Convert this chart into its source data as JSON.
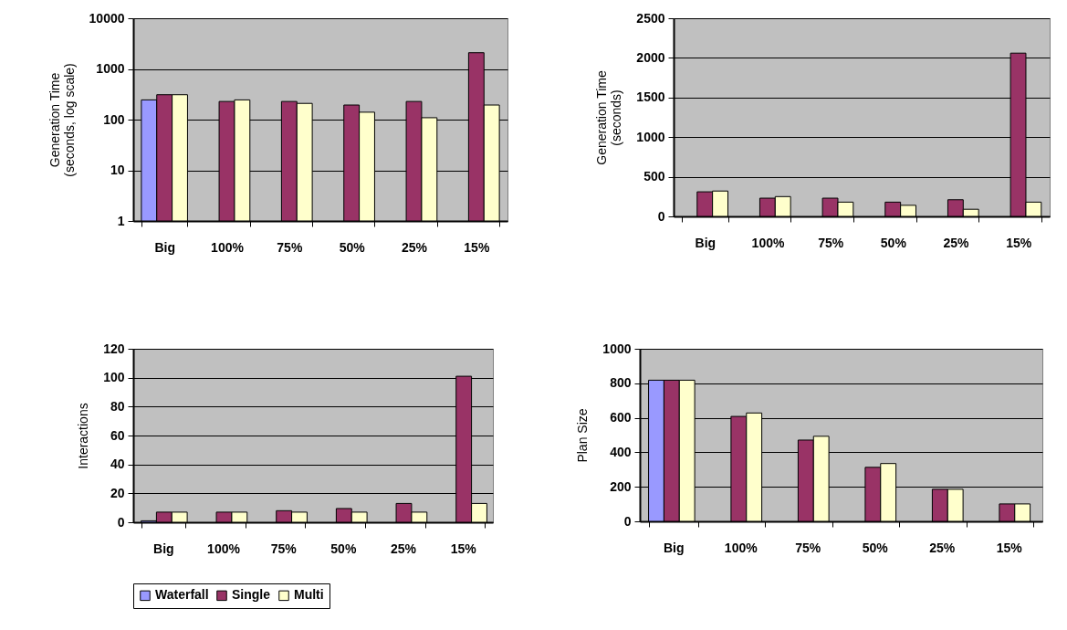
{
  "chart_data": [
    {
      "type": "bar",
      "ylabel": "Generation Time (seconds, log scale)",
      "log": true,
      "categories": [
        "Big",
        "100%",
        "75%",
        "50%",
        "25%",
        "15%"
      ],
      "ylim": [
        1,
        10000
      ],
      "yticks": [
        1,
        10,
        100,
        1000,
        10000
      ],
      "grid": "y",
      "legend": "bottom",
      "series": [
        {
          "name": "Waterfall",
          "color": "#9999ff",
          "values": [
            245,
            null,
            null,
            null,
            null,
            null
          ]
        },
        {
          "name": "Single",
          "color": "#993366",
          "values": [
            310,
            228,
            228,
            194,
            228,
            2090
          ]
        },
        {
          "name": "Multi",
          "color": "#ffffcc",
          "values": [
            310,
            245,
            209,
            140,
            109,
            194
          ]
        }
      ]
    },
    {
      "type": "bar",
      "ylabel": "Generation Time (seconds)",
      "categories": [
        "Big",
        "100%",
        "75%",
        "50%",
        "25%",
        "15%"
      ],
      "ylim": [
        0,
        2500
      ],
      "yticks": [
        0,
        500,
        1000,
        1500,
        2000,
        2500
      ],
      "grid": "y",
      "legend": "bottom",
      "series": [
        {
          "name": "Waterfall",
          "color": "#9999ff",
          "values": [
            null,
            null,
            null,
            null,
            null,
            null
          ]
        },
        {
          "name": "Single",
          "color": "#993366",
          "values": [
            310,
            230,
            230,
            180,
            210,
            2060
          ]
        },
        {
          "name": "Multi",
          "color": "#ffffcc",
          "values": [
            320,
            250,
            180,
            140,
            90,
            180
          ]
        }
      ]
    },
    {
      "type": "bar",
      "ylabel": "Interactions",
      "categories": [
        "Big",
        "100%",
        "75%",
        "50%",
        "25%",
        "15%"
      ],
      "ylim": [
        0,
        120
      ],
      "yticks": [
        0,
        20,
        40,
        60,
        80,
        100,
        120
      ],
      "grid": "y",
      "legend": "bottom",
      "series": [
        {
          "name": "Waterfall",
          "color": "#9999ff",
          "values": [
            1,
            null,
            null,
            null,
            null,
            null
          ]
        },
        {
          "name": "Single",
          "color": "#993366",
          "values": [
            7,
            7,
            8,
            9.5,
            13,
            101
          ]
        },
        {
          "name": "Multi",
          "color": "#ffffcc",
          "values": [
            7,
            7,
            7,
            7,
            7,
            13
          ]
        }
      ]
    },
    {
      "type": "bar",
      "ylabel": "Plan Size",
      "categories": [
        "Big",
        "100%",
        "75%",
        "50%",
        "25%",
        "15%"
      ],
      "ylim": [
        0,
        1000
      ],
      "yticks": [
        0,
        200,
        400,
        600,
        800,
        1000
      ],
      "grid": "y",
      "legend": "bottom",
      "series": [
        {
          "name": "Waterfall",
          "color": "#9999ff",
          "values": [
            818,
            null,
            null,
            null,
            null,
            null
          ]
        },
        {
          "name": "Single",
          "color": "#993366",
          "values": [
            818,
            608,
            471,
            313,
            186,
            101
          ]
        },
        {
          "name": "Multi",
          "color": "#ffffcc",
          "values": [
            818,
            628,
            493,
            335,
            186,
            101
          ]
        }
      ]
    }
  ]
}
